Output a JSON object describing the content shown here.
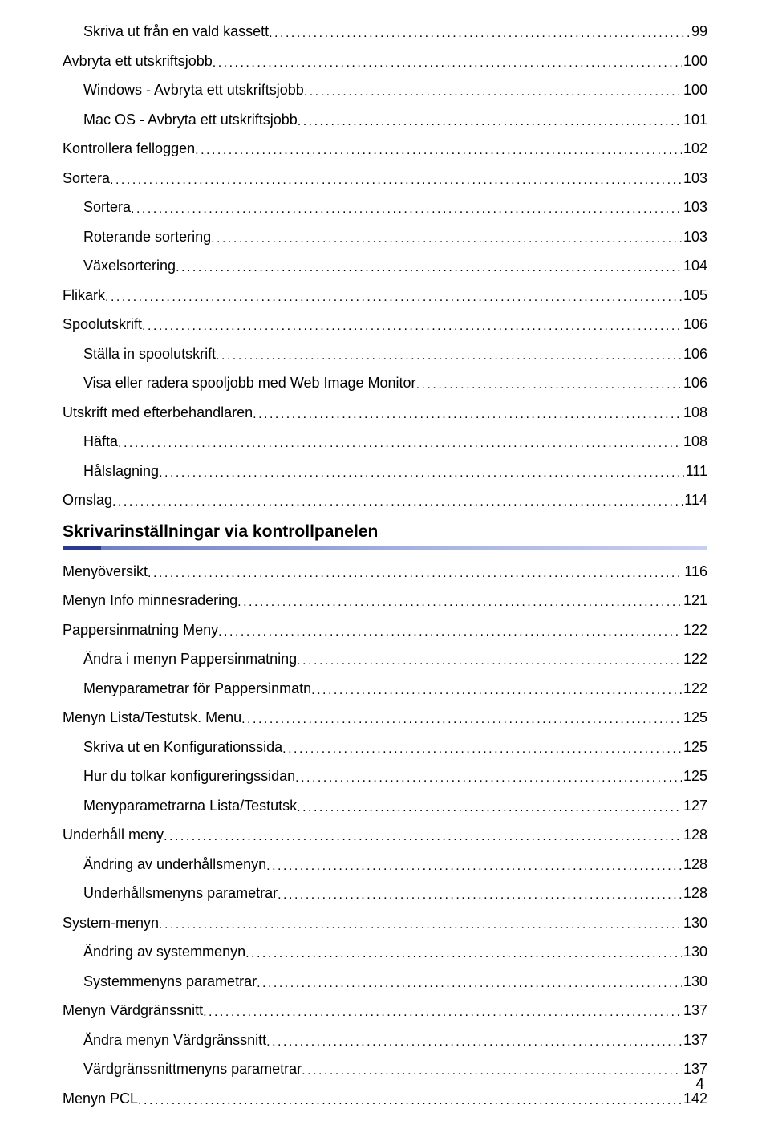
{
  "section_heading": "Skrivarinställningar via kontrollpanelen",
  "page_number": "4",
  "entries": [
    {
      "label": "Skriva ut från en vald kassett",
      "page": "99",
      "indent": 1,
      "group": "pre"
    },
    {
      "label": "Avbryta ett utskriftsjobb",
      "page": "100",
      "indent": 0,
      "group": "pre"
    },
    {
      "label": "Windows - Avbryta ett utskriftsjobb",
      "page": "100",
      "indent": 1,
      "group": "pre"
    },
    {
      "label": "Mac OS - Avbryta ett utskriftsjobb",
      "page": "101",
      "indent": 1,
      "group": "pre"
    },
    {
      "label": "Kontrollera felloggen",
      "page": "102",
      "indent": 0,
      "group": "pre"
    },
    {
      "label": "Sortera",
      "page": "103",
      "indent": 0,
      "group": "pre"
    },
    {
      "label": "Sortera",
      "page": "103",
      "indent": 1,
      "group": "pre"
    },
    {
      "label": "Roterande sortering",
      "page": "103",
      "indent": 1,
      "group": "pre"
    },
    {
      "label": "Växelsortering",
      "page": "104",
      "indent": 1,
      "group": "pre"
    },
    {
      "label": "Flikark",
      "page": "105",
      "indent": 0,
      "group": "pre"
    },
    {
      "label": "Spoolutskrift",
      "page": "106",
      "indent": 0,
      "group": "pre"
    },
    {
      "label": "Ställa in spoolutskrift",
      "page": "106",
      "indent": 1,
      "group": "pre"
    },
    {
      "label": "Visa eller radera spooljobb med Web Image Monitor",
      "page": "106",
      "indent": 1,
      "group": "pre"
    },
    {
      "label": "Utskrift med efterbehandlaren",
      "page": "108",
      "indent": 0,
      "group": "pre"
    },
    {
      "label": "Häfta",
      "page": "108",
      "indent": 1,
      "group": "pre"
    },
    {
      "label": "Hålslagning",
      "page": "111",
      "indent": 1,
      "group": "pre"
    },
    {
      "label": "Omslag",
      "page": "114",
      "indent": 0,
      "group": "pre"
    },
    {
      "label": "Menyöversikt",
      "page": "116",
      "indent": 0,
      "group": "post"
    },
    {
      "label": "Menyn Info minnesradering",
      "page": "121",
      "indent": 0,
      "group": "post"
    },
    {
      "label": "Pappersinmatning Meny",
      "page": "122",
      "indent": 0,
      "group": "post"
    },
    {
      "label": "Ändra i menyn Pappersinmatning",
      "page": "122",
      "indent": 1,
      "group": "post"
    },
    {
      "label": "Menyparametrar för Pappersinmatn",
      "page": "122",
      "indent": 1,
      "group": "post"
    },
    {
      "label": "Menyn Lista/Testutsk. Menu",
      "page": "125",
      "indent": 0,
      "group": "post"
    },
    {
      "label": "Skriva ut en Konfigurationssida",
      "page": "125",
      "indent": 1,
      "group": "post"
    },
    {
      "label": "Hur du tolkar konfigureringssidan",
      "page": "125",
      "indent": 1,
      "group": "post"
    },
    {
      "label": "Menyparametrarna Lista/Testutsk",
      "page": "127",
      "indent": 1,
      "group": "post"
    },
    {
      "label": "Underhåll meny",
      "page": "128",
      "indent": 0,
      "group": "post"
    },
    {
      "label": "Ändring av underhållsmenyn",
      "page": "128",
      "indent": 1,
      "group": "post"
    },
    {
      "label": "Underhållsmenyns parametrar",
      "page": "128",
      "indent": 1,
      "group": "post"
    },
    {
      "label": "System-menyn",
      "page": "130",
      "indent": 0,
      "group": "post"
    },
    {
      "label": "Ändring av systemmenyn",
      "page": "130",
      "indent": 1,
      "group": "post"
    },
    {
      "label": "Systemmenyns parametrar",
      "page": "130",
      "indent": 1,
      "group": "post"
    },
    {
      "label": "Menyn Värdgränssnitt",
      "page": "137",
      "indent": 0,
      "group": "post"
    },
    {
      "label": "Ändra menyn Värdgränssnitt",
      "page": "137",
      "indent": 1,
      "group": "post"
    },
    {
      "label": "Värdgränssnittmenyns parametrar",
      "page": "137",
      "indent": 1,
      "group": "post"
    },
    {
      "label": "Menyn PCL",
      "page": "142",
      "indent": 0,
      "group": "post"
    }
  ]
}
